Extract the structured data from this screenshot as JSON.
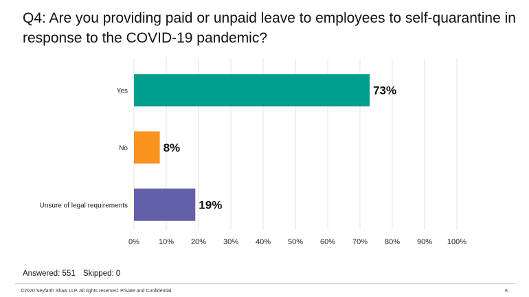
{
  "title": "Q4: Are you providing paid or unpaid leave to employees to self-quarantine in response to the COVID-19 pandemic?",
  "chart_data": {
    "type": "bar",
    "orientation": "horizontal",
    "categories": [
      "Yes",
      "No",
      "Unsure of legal requirements"
    ],
    "values": [
      73,
      8,
      19
    ],
    "value_labels": [
      "73%",
      "8%",
      "19%"
    ],
    "colors": [
      "#009e8f",
      "#f7931e",
      "#6260a8"
    ],
    "x_ticks": [
      "0%",
      "10%",
      "20%",
      "30%",
      "40%",
      "50%",
      "60%",
      "70%",
      "80%",
      "90%",
      "100%"
    ],
    "xlim": [
      0,
      100
    ],
    "grid": true,
    "legend": "none"
  },
  "stats": {
    "answered": "Answered: 551",
    "skipped": "Skipped: 0"
  },
  "footer": {
    "copyright": "©2020 Seyfarth Shaw LLP. All rights reserved. Private and Confidential",
    "page_number": "6"
  }
}
